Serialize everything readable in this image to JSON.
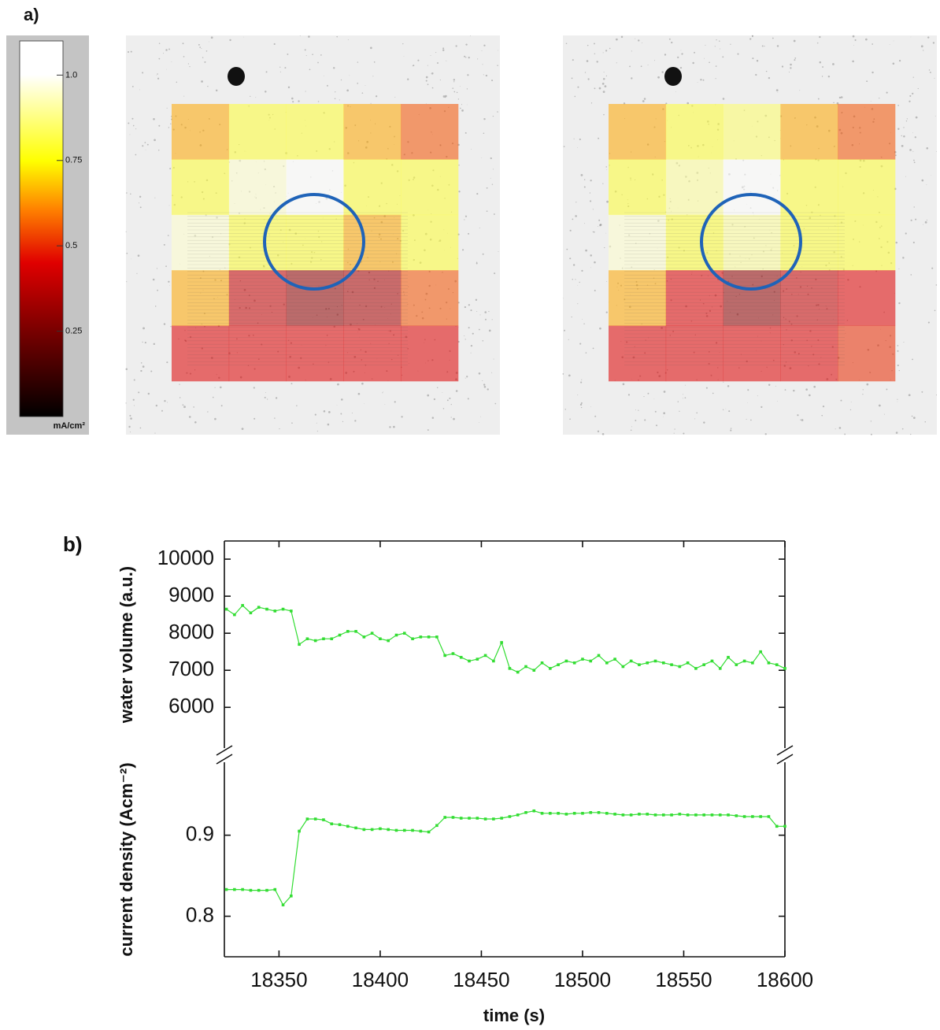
{
  "chart_data": [
    {
      "type": "heatmap",
      "label": "a)",
      "clim": [
        0,
        1.1
      ],
      "cticks": [
        0.25,
        0.5,
        0.75,
        {
          "value": 1,
          "label": "1.0"
        }
      ],
      "colorbar_unit": "mA/cm²",
      "grids": [
        [
          [
            0.65,
            0.8,
            0.8,
            0.65,
            0.55
          ],
          [
            0.8,
            0.95,
            1.0,
            0.8,
            0.8
          ],
          [
            0.95,
            0.8,
            0.8,
            0.65,
            0.8
          ],
          [
            0.65,
            0.4,
            0.3,
            0.35,
            0.55
          ],
          [
            0.45,
            0.45,
            0.45,
            0.45,
            0.45
          ]
        ],
        [
          [
            0.65,
            0.8,
            0.85,
            0.65,
            0.55
          ],
          [
            0.8,
            0.9,
            1.0,
            0.8,
            0.8
          ],
          [
            0.95,
            0.8,
            0.9,
            0.8,
            0.8
          ],
          [
            0.65,
            0.45,
            0.3,
            0.4,
            0.45
          ],
          [
            0.45,
            0.45,
            0.45,
            0.45,
            0.5
          ]
        ]
      ]
    },
    {
      "type": "line",
      "label": "b)",
      "xlabel": "time (s)",
      "xlim": [
        18323,
        18600
      ],
      "xticks": [
        18350,
        18400,
        18450,
        18500,
        18550,
        18600
      ],
      "x": [
        18324,
        18328,
        18332,
        18336,
        18340,
        18344,
        18348,
        18352,
        18356,
        18360,
        18364,
        18368,
        18372,
        18376,
        18380,
        18384,
        18388,
        18392,
        18396,
        18400,
        18404,
        18408,
        18412,
        18416,
        18420,
        18424,
        18428,
        18432,
        18436,
        18440,
        18444,
        18448,
        18452,
        18456,
        18460,
        18464,
        18468,
        18472,
        18476,
        18480,
        18484,
        18488,
        18492,
        18496,
        18500,
        18504,
        18508,
        18512,
        18516,
        18520,
        18524,
        18528,
        18532,
        18536,
        18540,
        18544,
        18548,
        18552,
        18556,
        18560,
        18564,
        18568,
        18572,
        18576,
        18580,
        18584,
        18588,
        18592,
        18596,
        18600
      ],
      "panels": [
        {
          "ylabel": "water volume (a.u.)",
          "ylim": [
            4900,
            10490
          ],
          "yticks": [
            6000,
            7000,
            8000,
            9000,
            10000
          ],
          "color": "#33dd33",
          "values": [
            8650,
            8500,
            8750,
            8550,
            8700,
            8650,
            8600,
            8650,
            8600,
            7700,
            7850,
            7800,
            7850,
            7850,
            7950,
            8050,
            8050,
            7900,
            8000,
            7850,
            7800,
            7950,
            8000,
            7850,
            7900,
            7900,
            7900,
            7400,
            7450,
            7350,
            7250,
            7300,
            7400,
            7250,
            7750,
            7050,
            6950,
            7100,
            7000,
            7200,
            7050,
            7150,
            7250,
            7200,
            7300,
            7250,
            7400,
            7200,
            7300,
            7100,
            7250,
            7150,
            7200,
            7250,
            7200,
            7150,
            7100,
            7200,
            7050,
            7150,
            7250,
            7050,
            7350,
            7150,
            7250,
            7200,
            7500,
            7200,
            7150,
            7050
          ]
        },
        {
          "ylabel": "current density (Acm⁻²)",
          "ylim": [
            0.75,
            0.99
          ],
          "yticks": [
            0.8,
            0.9
          ],
          "color": "#33dd33",
          "values": [
            0.833,
            0.833,
            0.833,
            0.832,
            0.832,
            0.832,
            0.833,
            0.814,
            0.825,
            0.905,
            0.92,
            0.92,
            0.919,
            0.914,
            0.913,
            0.911,
            0.909,
            0.907,
            0.907,
            0.908,
            0.907,
            0.906,
            0.906,
            0.906,
            0.905,
            0.904,
            0.912,
            0.922,
            0.922,
            0.921,
            0.921,
            0.921,
            0.92,
            0.92,
            0.921,
            0.923,
            0.925,
            0.928,
            0.93,
            0.927,
            0.927,
            0.927,
            0.926,
            0.927,
            0.927,
            0.928,
            0.928,
            0.927,
            0.926,
            0.925,
            0.925,
            0.926,
            0.926,
            0.925,
            0.925,
            0.925,
            0.926,
            0.925,
            0.925,
            0.925,
            0.925,
            0.925,
            0.925,
            0.924,
            0.923,
            0.923,
            0.923,
            0.923,
            0.911,
            0.911
          ]
        }
      ]
    }
  ]
}
